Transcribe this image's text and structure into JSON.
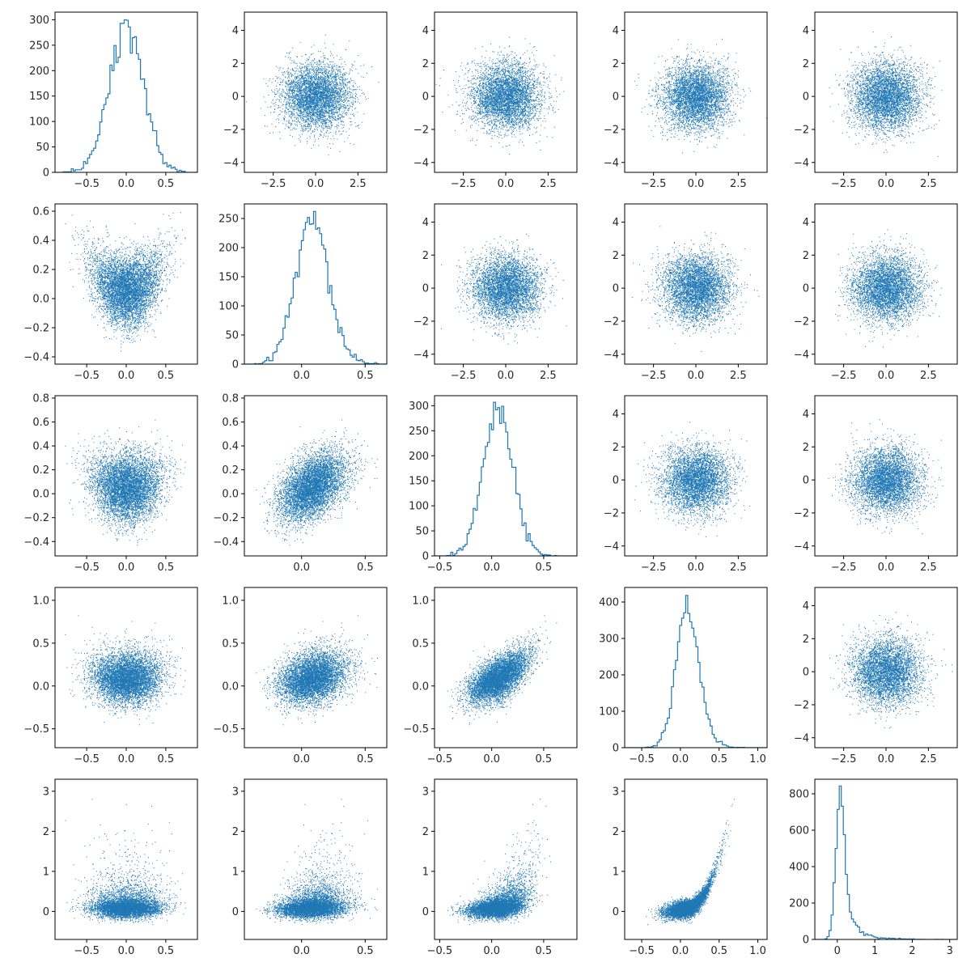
{
  "chart_data": {
    "type": "scatter-matrix",
    "color": "#1f77b4",
    "dimensions": 5,
    "variables": [
      {
        "range": [
          -0.9,
          0.9
        ],
        "ticks": [
          -0.5,
          0.0,
          0.5
        ],
        "tick_labels": [
          "−0.5",
          "0.0",
          "0.5"
        ],
        "y_range": [
          -0.45,
          0.65
        ],
        "y_ticks": [
          -0.4,
          -0.2,
          0.0,
          0.2,
          0.4,
          0.6
        ],
        "y_tick_labels": [
          "−0.4",
          "−0.2",
          "0.0",
          "0.2",
          "0.4",
          "0.6"
        ]
      },
      {
        "range": [
          -0.45,
          0.67
        ],
        "ticks": [
          0.0,
          0.5
        ],
        "tick_labels": [
          "0.0",
          "0.5"
        ],
        "y_range": [
          -0.52,
          0.82
        ],
        "y_ticks": [
          -0.4,
          -0.2,
          0.0,
          0.2,
          0.4,
          0.6,
          0.8
        ],
        "y_tick_labels": [
          "−0.4",
          "−0.2",
          "0.0",
          "0.2",
          "0.4",
          "0.6",
          "0.8"
        ]
      },
      {
        "range": [
          -0.55,
          0.82
        ],
        "ticks": [
          -0.5,
          0.0,
          0.5
        ],
        "tick_labels": [
          "−0.5",
          "0.0",
          "0.5"
        ],
        "y_range": [
          -0.72,
          1.15
        ],
        "y_ticks": [
          -0.5,
          0.0,
          0.5,
          1.0
        ],
        "y_tick_labels": [
          "−0.5",
          "0.0",
          "0.5",
          "1.0"
        ]
      },
      {
        "range": [
          -0.72,
          1.12
        ],
        "ticks": [
          -0.5,
          0.0,
          0.5,
          1.0
        ],
        "tick_labels": [
          "−0.5",
          "0.0",
          "0.5",
          "1.0"
        ],
        "y_range": [
          -0.7,
          3.3
        ],
        "y_ticks": [
          0,
          1,
          2,
          3
        ],
        "y_tick_labels": [
          "0",
          "1",
          "2",
          "3"
        ]
      },
      {
        "range": [
          -0.6,
          3.2
        ],
        "ticks": [
          0,
          1,
          2,
          3
        ],
        "tick_labels": [
          "0",
          "1",
          "2",
          "3"
        ]
      }
    ],
    "normal_axis": {
      "x_range": [
        -4.2,
        4.2
      ],
      "x_ticks": [
        -2.5,
        0.0,
        2.5
      ],
      "x_tick_labels": [
        "−2.5",
        "0.0",
        "2.5"
      ],
      "y_range": [
        -4.6,
        5.1
      ],
      "y_ticks": [
        -4,
        -2,
        0,
        2,
        4
      ],
      "y_tick_labels": [
        "−4",
        "−2",
        "0",
        "2",
        "4"
      ]
    },
    "histograms": [
      {
        "x_range": [
          -0.9,
          0.9
        ],
        "y_range": [
          0,
          315
        ],
        "y_ticks": [
          0,
          50,
          100,
          150,
          200,
          250,
          300
        ],
        "y_tick_labels": [
          "0",
          "50",
          "100",
          "150",
          "200",
          "250",
          "300"
        ],
        "peak": 300,
        "center": 0.0,
        "width": 0.2
      },
      {
        "x_range": [
          -0.45,
          0.67
        ],
        "y_range": [
          0,
          275
        ],
        "y_ticks": [
          0,
          50,
          100,
          150,
          200,
          250
        ],
        "y_tick_labels": [
          "0",
          "50",
          "100",
          "150",
          "200",
          "250"
        ],
        "peak": 262,
        "center": 0.1,
        "width": 0.15
      },
      {
        "x_range": [
          -0.55,
          0.82
        ],
        "y_range": [
          0,
          320
        ],
        "y_ticks": [
          0,
          50,
          100,
          150,
          200,
          250,
          300
        ],
        "y_tick_labels": [
          "0",
          "50",
          "100",
          "150",
          "200",
          "250",
          "300"
        ],
        "peak": 307,
        "center": 0.07,
        "width": 0.15
      },
      {
        "x_range": [
          -0.72,
          1.12
        ],
        "y_range": [
          0,
          440
        ],
        "y_ticks": [
          0,
          100,
          200,
          300,
          400
        ],
        "y_tick_labels": [
          "0",
          "100",
          "200",
          "300",
          "400"
        ],
        "peak": 418,
        "center": 0.09,
        "width": 0.14
      },
      {
        "x_range": [
          -0.6,
          3.2
        ],
        "y_range": [
          0,
          880
        ],
        "y_ticks": [
          0,
          200,
          400,
          600,
          800
        ],
        "y_tick_labels": [
          "0",
          "200",
          "400",
          "600",
          "800"
        ],
        "peak": 843,
        "center": 0.08,
        "width": 0.13
      }
    ],
    "upper_panels": "independent standard normal samples (mean 0, sd 1)",
    "lower_panels": "pairwise scatter of correlated variables",
    "grid": false,
    "legend": "none"
  }
}
